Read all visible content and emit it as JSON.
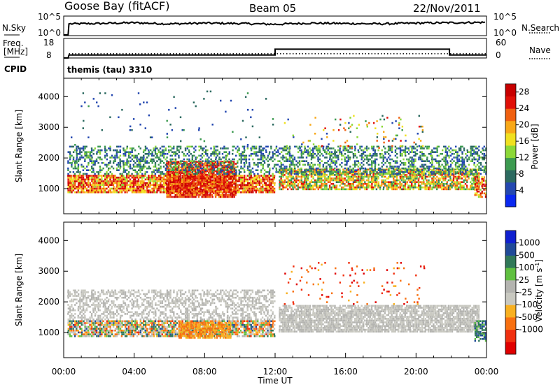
{
  "header": {
    "station": "Goose Bay (fitACF)",
    "beam": "Beam 05",
    "date": "22/Nov/2011"
  },
  "labels": {
    "nsky": "N.Sky",
    "nsearch": "N.Search",
    "freq_line1": "Freq.",
    "freq_line2": "[MHz]",
    "nave": "Nave",
    "cpid": "CPID",
    "cpid_value": "themis (tau) 3310"
  },
  "colors": {
    "power_scale": [
      "#0a28f0",
      "#2448b0",
      "#2c6a60",
      "#3c9a50",
      "#8cd838",
      "#f0e020",
      "#f8a818",
      "#f06010",
      "#e01008",
      "#c80000"
    ],
    "velocity_scale": [
      "#e00000",
      "#f03010",
      "#f87010",
      "#f8b020",
      "#c8c8c0",
      "#b4b4b0",
      "#60c040",
      "#307858",
      "#204a98",
      "#1020d0"
    ],
    "ground_scatter": "#bcbcb8"
  },
  "chart_data": [
    {
      "type": "line",
      "name": "noise-panel",
      "series": [
        {
          "name": "N.Sky",
          "note_style": "solid"
        },
        {
          "name": "N.Search",
          "note_style": "dotted"
        }
      ],
      "left_axis": {
        "label": "N.Sky",
        "ticks": [
          "10^5",
          "10^0"
        ]
      },
      "right_axis": {
        "label": "N.Search",
        "ticks": [
          "10^5",
          "10^0"
        ]
      },
      "nsky_x": [
        0,
        0.25,
        0.3,
        2,
        4,
        6,
        8,
        10,
        12,
        14,
        16,
        18,
        20,
        22,
        24
      ],
      "nsky_y": [
        0.2,
        0.2,
        3.0,
        3.1,
        3.3,
        3.0,
        3.2,
        3.1,
        2.9,
        3.2,
        3.1,
        3.0,
        3.2,
        3.3,
        3.4
      ]
    },
    {
      "type": "line",
      "name": "frequency-panel",
      "left_axis": {
        "label": "Freq. [MHz]",
        "ticks": [
          "18",
          "8"
        ],
        "range": [
          8,
          18
        ]
      },
      "right_axis": {
        "label": "Nave",
        "ticks": [
          "60",
          "0"
        ],
        "range": [
          0,
          60
        ]
      },
      "freq_x": [
        0,
        0.25,
        0.3,
        12.0,
        12.0,
        21.9,
        21.9,
        24
      ],
      "freq_y": [
        8,
        8,
        9.5,
        9.5,
        12.5,
        12.5,
        9.5,
        9.5
      ],
      "nave_x": [
        0.3,
        24
      ],
      "nave_y": [
        13,
        13
      ]
    },
    {
      "type": "heatmap",
      "name": "power-panel",
      "ylabel": "Slant Range [km]",
      "yticks": [
        1000,
        2000,
        3000,
        4000
      ],
      "ylim": [
        180,
        4600
      ],
      "xlim": [
        0,
        24
      ],
      "xticks": [
        "00:00",
        "04:00",
        "08:00",
        "12:00",
        "16:00",
        "20:00",
        "00:00"
      ],
      "colorbar": {
        "label": "Power [dB]",
        "ticks": [
          "4",
          "8",
          "12",
          "16",
          "20",
          "24",
          "28"
        ],
        "range": [
          0,
          30
        ]
      },
      "regions": [
        {
          "t0": 0.2,
          "t1": 12.0,
          "r0": 850,
          "r1": 1450,
          "v0": 14,
          "v1": 30,
          "density": 0.9
        },
        {
          "t0": 5.8,
          "t1": 9.8,
          "r0": 700,
          "r1": 1900,
          "v0": 20,
          "v1": 30,
          "density": 0.9
        },
        {
          "t0": 12.2,
          "t1": 23.6,
          "r0": 950,
          "r1": 1650,
          "v0": 8,
          "v1": 26,
          "density": 0.8
        },
        {
          "t0": 0.2,
          "t1": 24.0,
          "r0": 1450,
          "r1": 2400,
          "v0": 3,
          "v1": 14,
          "density": 0.45
        },
        {
          "t0": 12.5,
          "t1": 20.5,
          "r0": 2300,
          "r1": 3400,
          "v0": 3,
          "v1": 26,
          "density": 0.06
        },
        {
          "t0": 0.2,
          "t1": 12.0,
          "r0": 2400,
          "r1": 4200,
          "v0": 3,
          "v1": 10,
          "density": 0.015
        },
        {
          "t0": 23.3,
          "t1": 24.0,
          "r0": 700,
          "r1": 1400,
          "v0": 12,
          "v1": 30,
          "density": 0.7
        }
      ]
    },
    {
      "type": "heatmap",
      "name": "velocity-panel",
      "ylabel": "Slant Range [km]",
      "yticks": [
        1000,
        2000,
        3000,
        4000
      ],
      "ylim": [
        180,
        4600
      ],
      "xlim": [
        0,
        24
      ],
      "xlabel": "Time UT",
      "xticks": [
        "00:00",
        "04:00",
        "08:00",
        "12:00",
        "16:00",
        "20:00",
        "00:00"
      ],
      "colorbar": {
        "label": "Velocity [m s^-1]",
        "ticks": [
          "1000",
          "500",
          "100",
          "25",
          "-25",
          "-100",
          "-500",
          "-1000"
        ]
      },
      "regions": [
        {
          "t0": 0.2,
          "t1": 12.0,
          "r0": 850,
          "r1": 1400,
          "v0": 1,
          "v1": 8,
          "density": 0.85
        },
        {
          "t0": 6.5,
          "t1": 9.5,
          "r0": 800,
          "r1": 1350,
          "v0": 2,
          "v1": 3,
          "density": 0.8
        },
        {
          "t0": 0.2,
          "t1": 12.0,
          "r0": 1400,
          "r1": 2400,
          "v0": 4,
          "v1": 5,
          "density": 0.5
        },
        {
          "t0": 12.2,
          "t1": 23.6,
          "r0": 1000,
          "r1": 1900,
          "v0": 4,
          "v1": 5,
          "density": 0.85
        },
        {
          "t0": 12.5,
          "t1": 20.5,
          "r0": 1900,
          "r1": 3300,
          "v0": 0,
          "v1": 3,
          "density": 0.05
        },
        {
          "t0": 23.3,
          "t1": 24.0,
          "r0": 700,
          "r1": 1400,
          "v0": 6,
          "v1": 8,
          "density": 0.7
        }
      ]
    }
  ]
}
